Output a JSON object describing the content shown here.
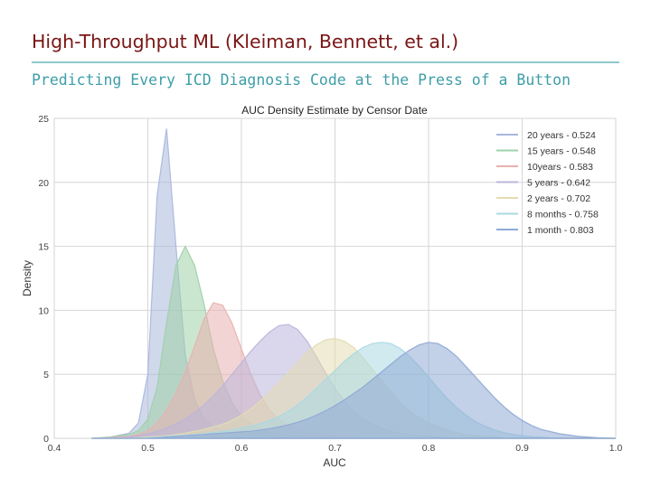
{
  "slide": {
    "title": "High-Throughput ML (Kleiman, Bennett, et al.)",
    "subtitle": "Predicting Every ICD Diagnosis Code at the Press of a Button"
  },
  "chart_data": {
    "type": "area",
    "title": "AUC Density Estimate by Censor Date",
    "xlabel": "AUC",
    "ylabel": "Density",
    "xlim": [
      0.4,
      1.0
    ],
    "ylim": [
      0,
      25
    ],
    "xticks": [
      "0.4",
      "0.5",
      "0.6",
      "0.7",
      "0.8",
      "0.9",
      "1.0"
    ],
    "yticks": [
      "0",
      "5",
      "10",
      "15",
      "20",
      "25"
    ],
    "grid": true,
    "legend_position": "top-right",
    "x": [
      0.44,
      0.46,
      0.48,
      0.49,
      0.5,
      0.51,
      0.52,
      0.53,
      0.54,
      0.55,
      0.56,
      0.57,
      0.58,
      0.59,
      0.6,
      0.61,
      0.62,
      0.63,
      0.64,
      0.65,
      0.66,
      0.67,
      0.68,
      0.69,
      0.7,
      0.71,
      0.72,
      0.73,
      0.74,
      0.75,
      0.76,
      0.77,
      0.78,
      0.79,
      0.8,
      0.81,
      0.82,
      0.83,
      0.84,
      0.85,
      0.86,
      0.87,
      0.88,
      0.89,
      0.9,
      0.91,
      0.92,
      0.94,
      0.96,
      0.98,
      1.0
    ],
    "series": [
      {
        "name": "20 years - 0.524",
        "color": "#a9b8dc",
        "values": [
          0,
          0.1,
          0.4,
          1.2,
          5.0,
          19.0,
          24.2,
          15.0,
          6.5,
          3.0,
          1.5,
          0.9,
          0.6,
          0.4,
          0.3,
          0.2,
          0.15,
          0.1,
          0.05,
          0,
          0,
          0,
          0,
          0,
          0,
          0,
          0,
          0,
          0,
          0,
          0,
          0,
          0,
          0,
          0,
          0,
          0,
          0,
          0,
          0,
          0,
          0,
          0,
          0,
          0,
          0,
          0,
          0,
          0,
          0,
          0
        ]
      },
      {
        "name": "15 years - 0.548",
        "color": "#9fd1a7",
        "values": [
          0,
          0.1,
          0.3,
          0.6,
          1.5,
          4.0,
          9.0,
          13.5,
          15.0,
          13.5,
          10.5,
          7.0,
          4.5,
          2.8,
          1.7,
          1.1,
          0.7,
          0.5,
          0.35,
          0.25,
          0.18,
          0.12,
          0.1,
          0.06,
          0,
          0,
          0,
          0,
          0,
          0,
          0,
          0,
          0,
          0,
          0,
          0,
          0,
          0,
          0,
          0,
          0,
          0,
          0,
          0,
          0,
          0,
          0,
          0,
          0,
          0,
          0
        ]
      },
      {
        "name": "10years - 0.583",
        "color": "#eab0b0",
        "values": [
          0,
          0.05,
          0.15,
          0.3,
          0.6,
          1.2,
          2.2,
          3.5,
          5.2,
          7.2,
          9.3,
          10.6,
          10.4,
          9.0,
          7.0,
          5.0,
          3.4,
          2.2,
          1.5,
          1.0,
          0.7,
          0.5,
          0.35,
          0.25,
          0.18,
          0.12,
          0.08,
          0,
          0,
          0,
          0,
          0,
          0,
          0,
          0,
          0,
          0,
          0,
          0,
          0,
          0,
          0,
          0,
          0,
          0,
          0,
          0,
          0,
          0,
          0,
          0
        ]
      },
      {
        "name": "5 years - 0.642",
        "color": "#bcb4da",
        "values": [
          0,
          0,
          0.1,
          0.2,
          0.35,
          0.55,
          0.8,
          1.1,
          1.5,
          2.0,
          2.6,
          3.3,
          4.1,
          5.0,
          5.9,
          6.8,
          7.6,
          8.3,
          8.8,
          8.9,
          8.5,
          7.6,
          6.4,
          5.1,
          3.9,
          2.9,
          2.1,
          1.5,
          1.1,
          0.8,
          0.55,
          0.4,
          0.3,
          0.2,
          0.15,
          0.1,
          0,
          0,
          0,
          0,
          0,
          0,
          0,
          0,
          0,
          0,
          0,
          0,
          0,
          0,
          0
        ]
      },
      {
        "name": "2 years - 0.702",
        "color": "#e3dcb2",
        "values": [
          0,
          0,
          0,
          0.05,
          0.1,
          0.15,
          0.2,
          0.3,
          0.4,
          0.55,
          0.7,
          0.9,
          1.1,
          1.4,
          1.8,
          2.3,
          2.9,
          3.6,
          4.3,
          5.1,
          5.9,
          6.7,
          7.3,
          7.7,
          7.8,
          7.6,
          7.1,
          6.3,
          5.4,
          4.5,
          3.6,
          2.8,
          2.1,
          1.6,
          1.2,
          0.9,
          0.65,
          0.45,
          0.3,
          0.2,
          0.15,
          0.1,
          0.05,
          0,
          0,
          0,
          0,
          0,
          0,
          0,
          0
        ]
      },
      {
        "name": "8 months - 0.758",
        "color": "#a9d9e4",
        "values": [
          0,
          0,
          0,
          0,
          0.05,
          0.1,
          0.15,
          0.2,
          0.25,
          0.3,
          0.35,
          0.45,
          0.55,
          0.65,
          0.8,
          0.95,
          1.15,
          1.4,
          1.7,
          2.1,
          2.6,
          3.2,
          3.9,
          4.6,
          5.3,
          6.0,
          6.6,
          7.1,
          7.4,
          7.5,
          7.4,
          7.0,
          6.4,
          5.6,
          4.8,
          3.9,
          3.1,
          2.4,
          1.8,
          1.3,
          0.95,
          0.65,
          0.45,
          0.3,
          0.2,
          0.12,
          0.08,
          0,
          0,
          0,
          0
        ]
      },
      {
        "name": "1 month - 0.803",
        "color": "#8fa9d6",
        "values": [
          0,
          0,
          0,
          0,
          0,
          0.05,
          0.1,
          0.15,
          0.2,
          0.25,
          0.3,
          0.35,
          0.4,
          0.45,
          0.5,
          0.55,
          0.65,
          0.75,
          0.9,
          1.05,
          1.25,
          1.5,
          1.8,
          2.15,
          2.55,
          3.0,
          3.5,
          4.0,
          4.6,
          5.2,
          5.8,
          6.4,
          6.9,
          7.3,
          7.5,
          7.4,
          7.0,
          6.4,
          5.6,
          4.8,
          4.0,
          3.2,
          2.5,
          1.9,
          1.4,
          1.0,
          0.7,
          0.35,
          0.15,
          0.05,
          0
        ]
      }
    ]
  }
}
